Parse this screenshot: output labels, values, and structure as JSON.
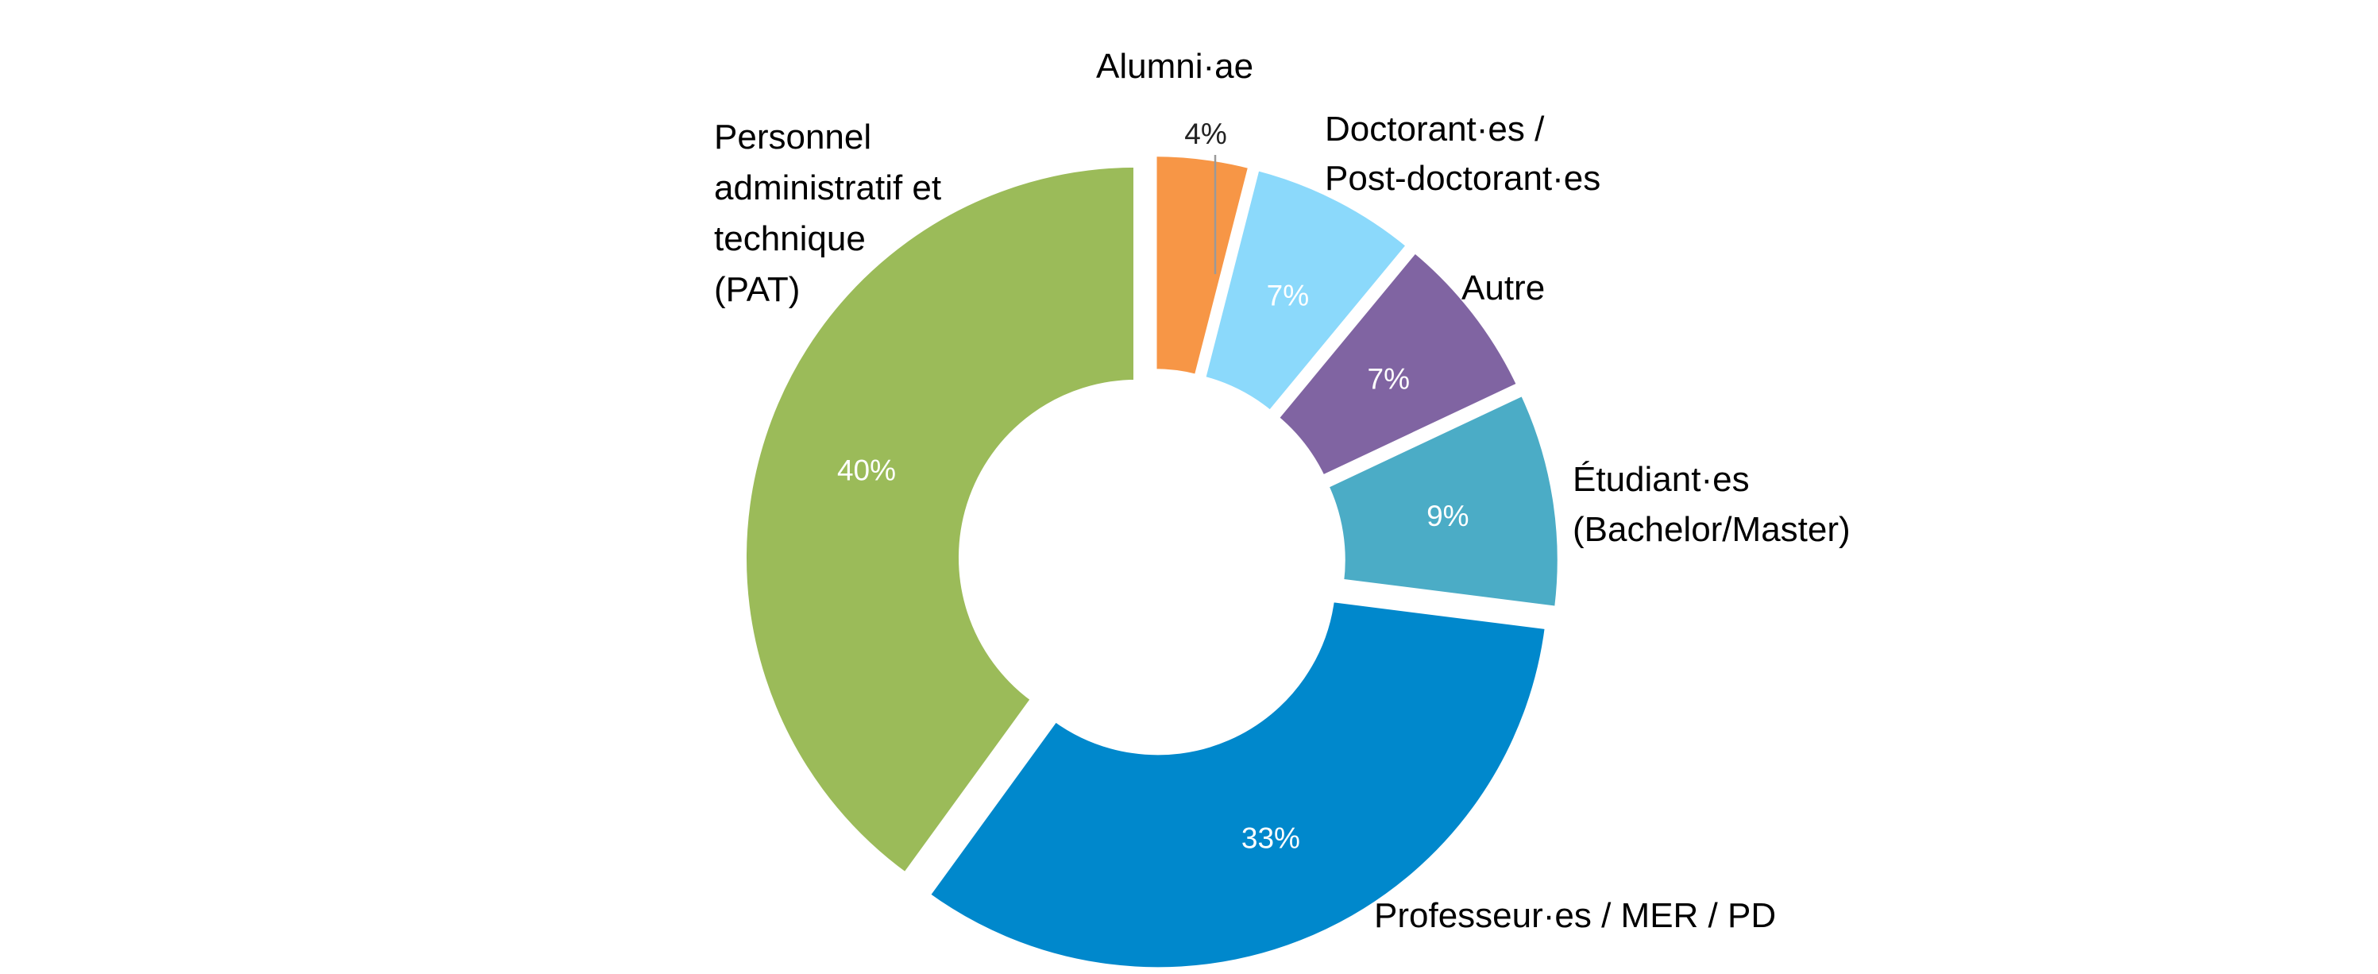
{
  "chart_data": {
    "type": "pie",
    "variant": "donut",
    "exploded": true,
    "title": "",
    "slices": [
      {
        "category": "Alumni·ae",
        "value": 4,
        "value_label": "4%",
        "color": "#F79646",
        "label_lines": [
          "Alumni·ae"
        ],
        "value_label_outside": true
      },
      {
        "category": "Doctorant·es / Post-doctorant·es",
        "value": 7,
        "value_label": "7%",
        "color": "#8BD9FB",
        "label_lines": [
          "Doctorant·es /",
          "Post-doctorant·es"
        ]
      },
      {
        "category": "Autre",
        "value": 7,
        "value_label": "7%",
        "color": "#8064A2",
        "label_lines": [
          "Autre"
        ]
      },
      {
        "category": "Étudiant·es (Bachelor/Master)",
        "value": 9,
        "value_label": "9%",
        "color": "#4BACC6",
        "label_lines": [
          "Étudiant·es",
          "(Bachelor/Master)"
        ]
      },
      {
        "category": "Professeur·es / MER / PD",
        "value": 33,
        "value_label": "33%",
        "color": "#0088CC",
        "label_lines": [
          "Professeur·es / MER / PD"
        ]
      },
      {
        "category": "Personnel administratif et technique (PAT)",
        "value": 40,
        "value_label": "40%",
        "color": "#9BBB59",
        "label_lines": [
          "Personnel",
          "administratif et",
          "technique",
          "(PAT)"
        ]
      }
    ]
  }
}
